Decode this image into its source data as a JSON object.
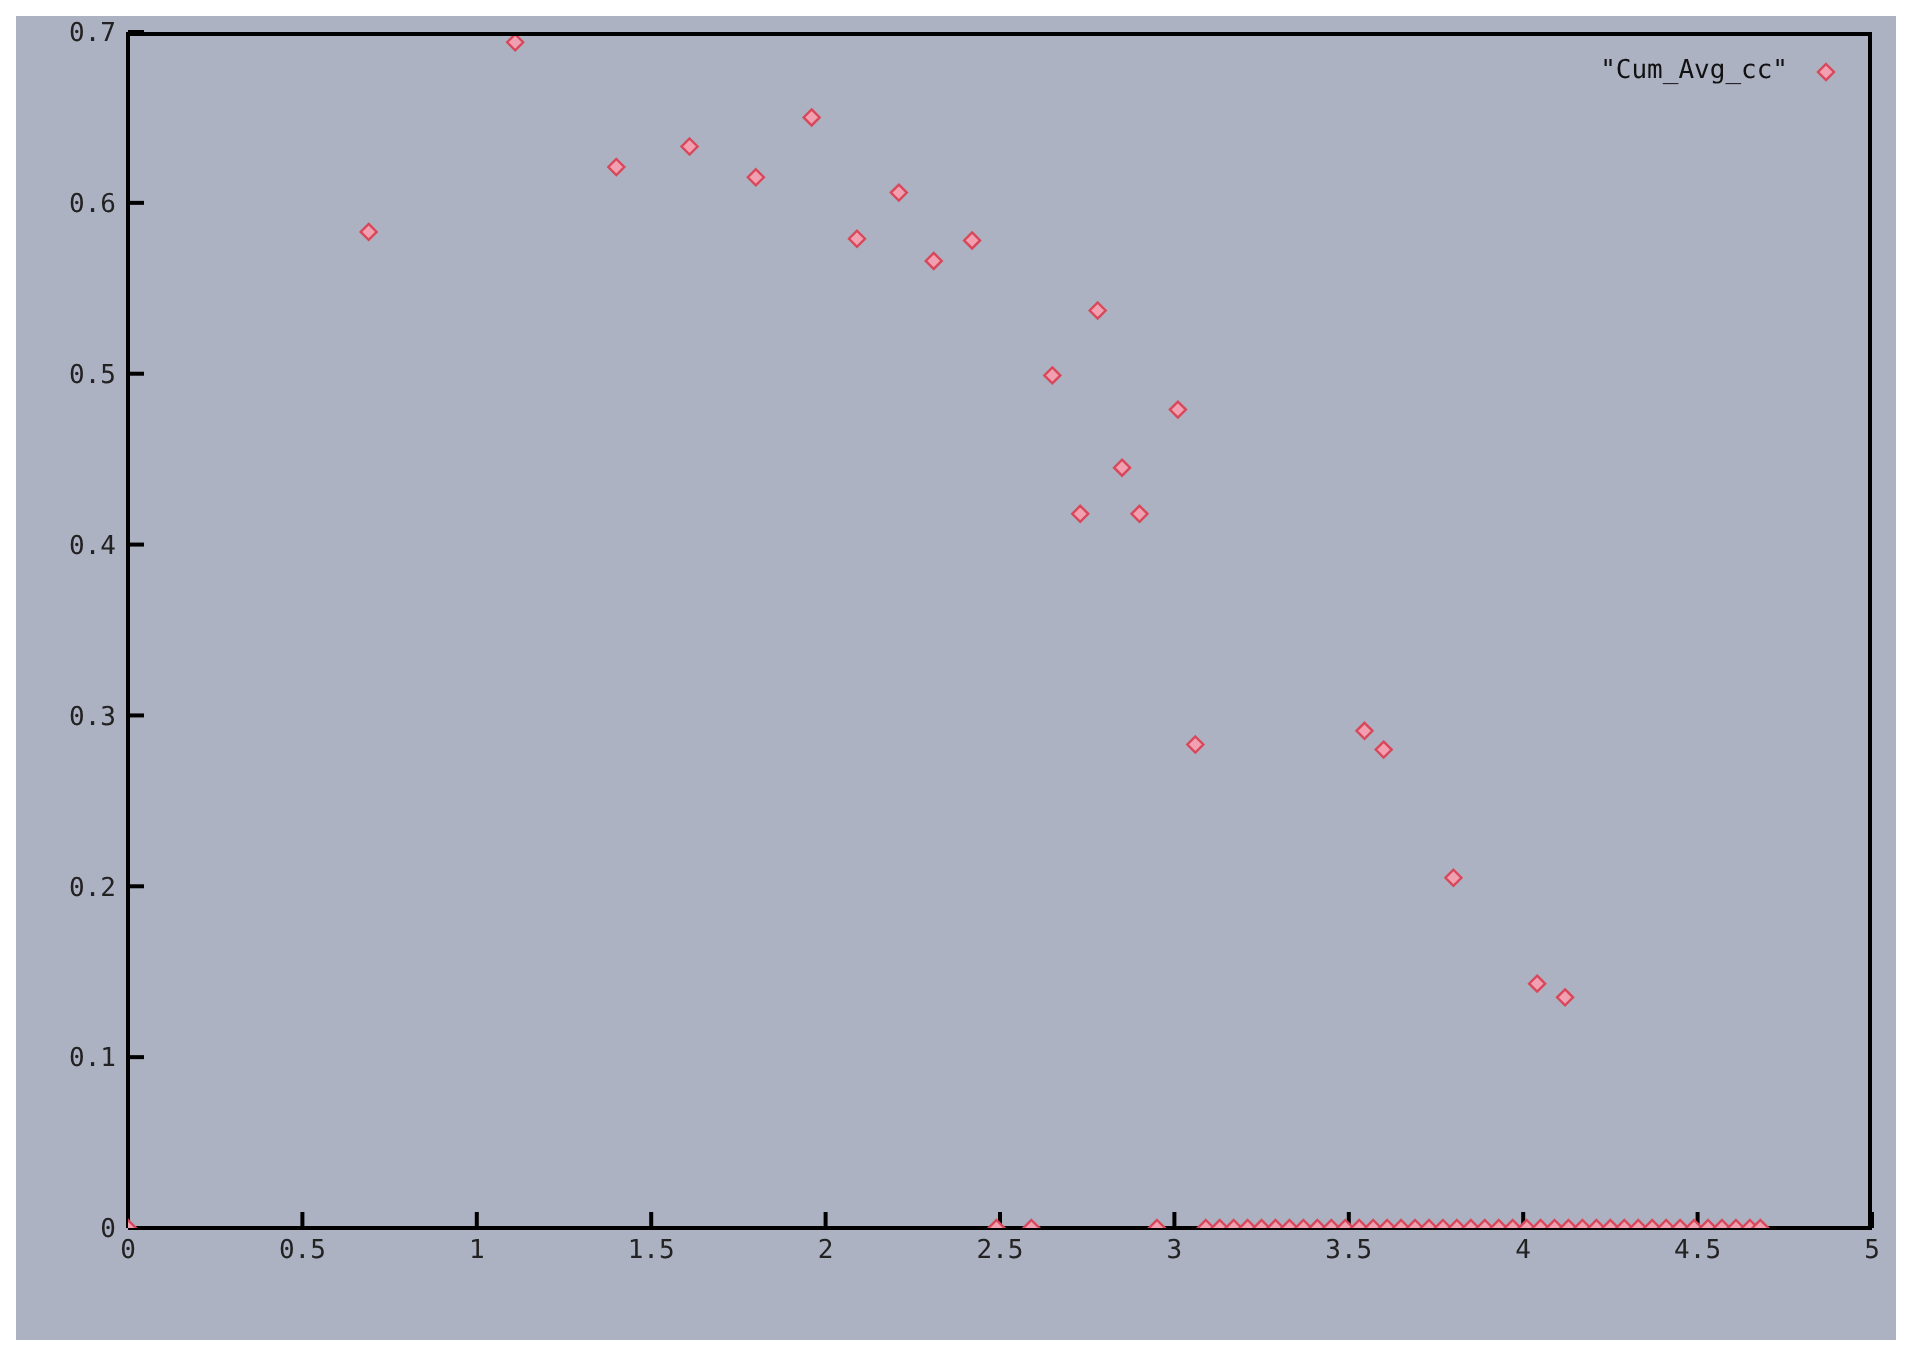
{
  "chart_data": {
    "type": "scatter",
    "legend": "top right",
    "marker": "diamond",
    "grid": false,
    "xlim": [
      0,
      5
    ],
    "xticks": [
      0,
      0.5,
      1,
      1.5,
      2,
      2.5,
      3,
      3.5,
      4,
      4.5,
      5
    ],
    "ylim": [
      0,
      0.7
    ],
    "yticks": [
      0,
      0.1,
      0.2,
      0.3,
      0.4,
      0.5,
      0.6,
      0.7
    ],
    "series": [
      {
        "name": "\"Cum_Avg_cc\"",
        "color": "#d8485a",
        "x": [
          0,
          0.69,
          1.11,
          1.4,
          1.61,
          1.8,
          1.96,
          2.09,
          2.21,
          2.31,
          2.42,
          2.49,
          2.59,
          2.65,
          2.73,
          2.78,
          2.85,
          2.9,
          2.95,
          3.01,
          3.06,
          3.09,
          3.13,
          3.17,
          3.21,
          3.25,
          3.29,
          3.33,
          3.37,
          3.41,
          3.45,
          3.49,
          3.53,
          3.545,
          3.57,
          3.6,
          3.61,
          3.65,
          3.69,
          3.73,
          3.77,
          3.8,
          3.81,
          3.85,
          3.89,
          3.93,
          3.97,
          4.01,
          4.04,
          4.05,
          4.09,
          4.12,
          4.13,
          4.17,
          4.21,
          4.25,
          4.29,
          4.33,
          4.37,
          4.41,
          4.45,
          4.49,
          4.53,
          4.57,
          4.61,
          4.65,
          4.68
        ],
        "values": [
          0,
          0.583,
          0.694,
          0.621,
          0.633,
          0.615,
          0.65,
          0.579,
          0.606,
          0.566,
          0.578,
          0,
          0,
          0.499,
          0.418,
          0.537,
          0.445,
          0.418,
          0,
          0.479,
          0.283,
          0,
          0,
          0,
          0,
          0,
          0,
          0,
          0,
          0,
          0,
          0,
          0,
          0.291,
          0,
          0.28,
          0,
          0,
          0,
          0,
          0,
          0.205,
          0,
          0,
          0,
          0,
          0,
          0,
          0.143,
          0,
          0,
          0.135,
          0,
          0,
          0,
          0,
          0,
          0,
          0,
          0,
          0,
          0,
          0,
          0,
          0,
          0,
          0
        ]
      }
    ]
  }
}
